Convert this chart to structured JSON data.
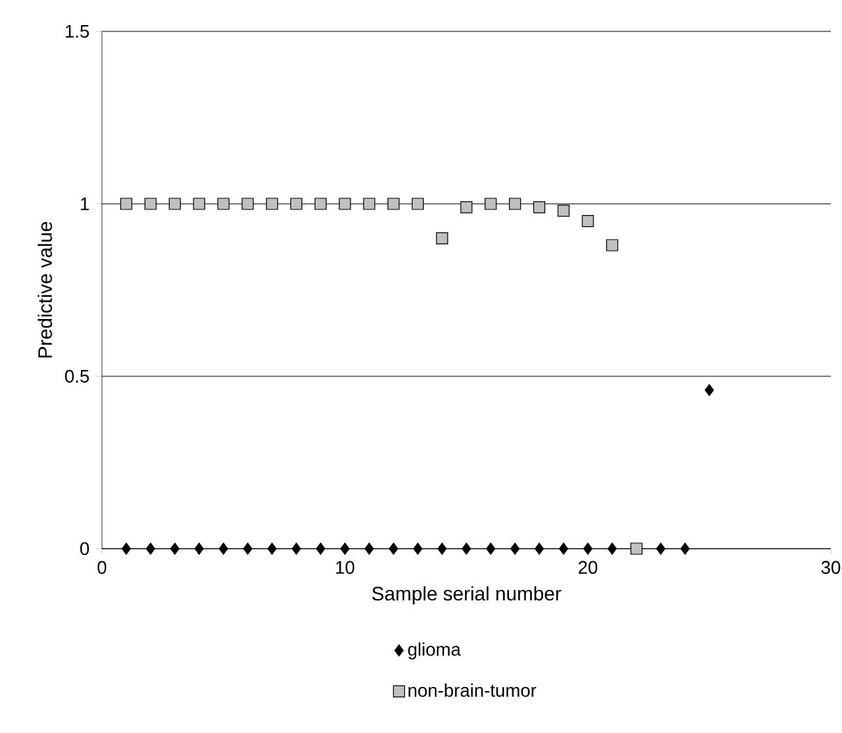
{
  "chart_data": {
    "type": "scatter",
    "xlabel": "Sample serial number",
    "ylabel": "Predictive value",
    "xlim": [
      0,
      30
    ],
    "xticks": [
      0,
      10,
      20,
      30
    ],
    "ylim": [
      0,
      1.5
    ],
    "yticks": [
      0,
      0.5,
      1,
      1.5
    ],
    "grid": "y",
    "legend": "bottom",
    "series": [
      {
        "name": "glioma",
        "color": "#000000",
        "marker": "diamond",
        "x": [
          1,
          2,
          3,
          4,
          5,
          6,
          7,
          8,
          9,
          10,
          11,
          12,
          13,
          14,
          15,
          16,
          17,
          18,
          19,
          20,
          21,
          23,
          24,
          25
        ],
        "values": [
          0,
          0,
          0,
          0,
          0,
          0,
          0,
          0,
          0,
          0,
          0,
          0,
          0,
          0,
          0,
          0,
          0,
          0,
          0,
          0,
          0,
          0,
          0,
          0.46
        ]
      },
      {
        "name": "non-brain-tumor",
        "color": "#c0c0c0",
        "marker": "square",
        "x": [
          1,
          2,
          3,
          4,
          5,
          6,
          7,
          8,
          9,
          10,
          11,
          12,
          13,
          14,
          15,
          16,
          17,
          18,
          19,
          20,
          21,
          22
        ],
        "values": [
          1,
          1,
          1,
          1,
          1,
          1,
          1,
          1,
          1,
          1,
          1,
          1,
          1,
          0.9,
          0.99,
          1,
          1,
          0.99,
          0.98,
          0.95,
          0.88,
          0
        ]
      }
    ]
  }
}
